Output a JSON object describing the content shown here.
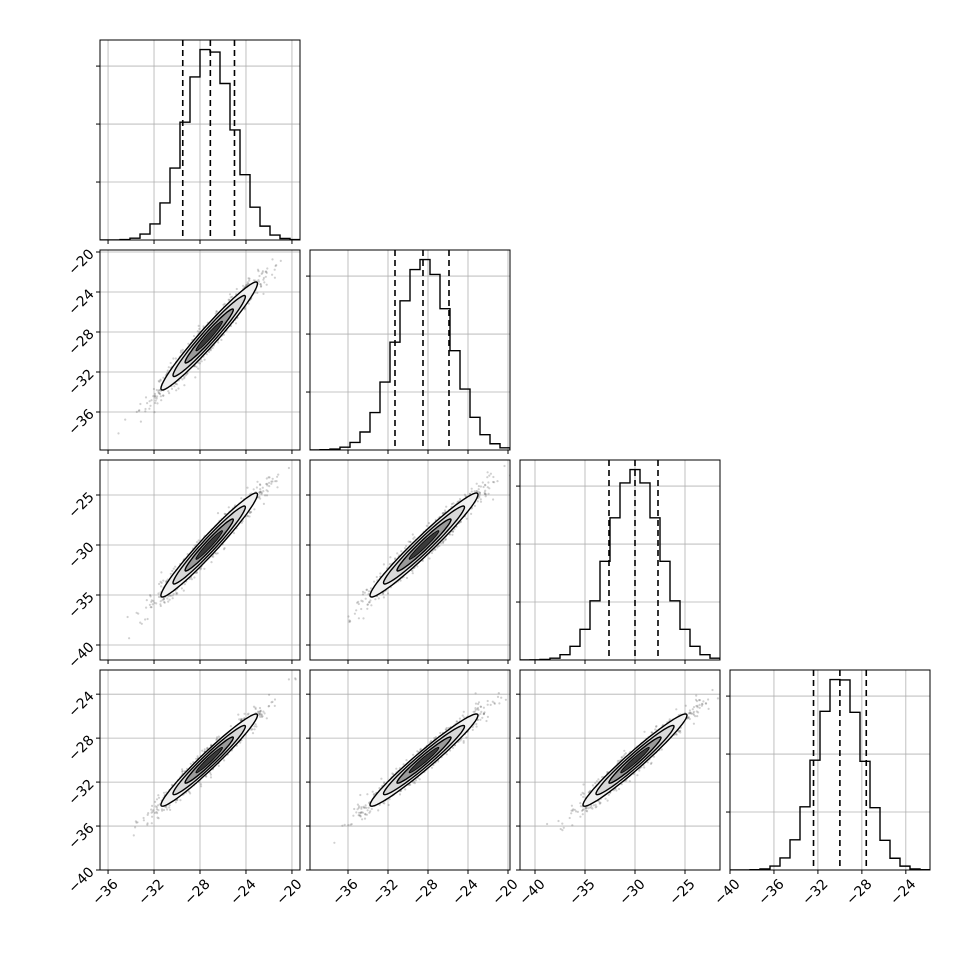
{
  "chart_data": {
    "type": "corner",
    "grid": true,
    "title": "",
    "parameters": [
      {
        "axis_ticks": [
          -36,
          -32,
          -28,
          -24,
          -20
        ],
        "range": [
          -36.7,
          -19.3
        ],
        "mean": -27.2,
        "sigma": 2.1,
        "quantiles": [
          -29.5,
          -27.1,
          -25.0
        ]
      },
      {
        "axis_ticks": [
          -36,
          -32,
          -28,
          -24,
          -20
        ],
        "range": [
          -39.8,
          -19.8
        ],
        "mean": -28.4,
        "sigma": 2.7,
        "quantiles": [
          -31.3,
          -28.5,
          -25.9
        ]
      },
      {
        "axis_ticks": [
          -40,
          -35,
          -30,
          -25
        ],
        "range": [
          -41.5,
          -21.5
        ],
        "mean": -30.0,
        "sigma": 2.6,
        "quantiles": [
          -32.6,
          -30.0,
          -27.7
        ]
      },
      {
        "axis_ticks": [
          -40,
          -36,
          -32,
          -28,
          -24
        ],
        "range": [
          -40.0,
          -21.8
        ],
        "mean": -30.0,
        "sigma": 2.1,
        "quantiles": [
          -32.4,
          -30.0,
          -27.6
        ]
      }
    ],
    "correlation": 0.97,
    "histogram_bins": 20,
    "scatter_color": "#555555",
    "contour_fills": [
      "#f0f0f0",
      "#d8d8d8",
      "#9a9a9a",
      "#303030"
    ],
    "line_color": "#000000",
    "grid_color": "#b0b0b0"
  }
}
